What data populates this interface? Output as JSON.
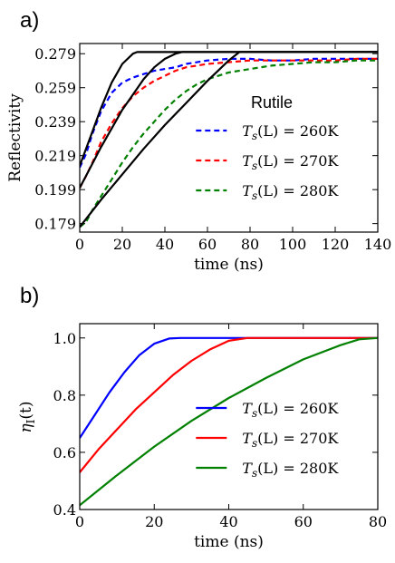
{
  "panels": [
    {
      "letter": "a)"
    },
    {
      "letter": "b)"
    }
  ],
  "chart_data": [
    {
      "type": "line",
      "xlabel": "time (ns)",
      "ylabel": "Reflectivity",
      "xlim": [
        0,
        140
      ],
      "ylim": [
        0.174,
        0.285
      ],
      "xticks": [
        0,
        20,
        40,
        60,
        80,
        100,
        120,
        140
      ],
      "yticks": [
        0.179,
        0.199,
        0.219,
        0.239,
        0.259,
        0.279
      ],
      "yticklabels": [
        "0.179",
        "0.199",
        "0.219",
        "0.239",
        "0.259",
        "0.279"
      ],
      "annotation": "Rutile",
      "legend_position": "lower-right",
      "series": [
        {
          "name": "T_s(L) = 260K",
          "label_main": "T",
          "label_sub": "s",
          "label_rest": "(L) = 260K",
          "color": "#0000ff",
          "style": "dashed",
          "x": [
            0,
            3,
            6,
            10,
            15,
            20,
            25,
            30,
            35,
            40,
            45,
            50,
            60,
            70,
            80,
            90,
            100,
            110,
            120,
            130,
            140
          ],
          "y": [
            0.212,
            0.22,
            0.232,
            0.245,
            0.256,
            0.262,
            0.265,
            0.267,
            0.269,
            0.27,
            0.271,
            0.273,
            0.275,
            0.276,
            0.276,
            0.275,
            0.275,
            0.276,
            0.276,
            0.276,
            0.276
          ]
        },
        {
          "name": "T_s(L) = 270K",
          "label_main": "T",
          "label_sub": "s",
          "label_rest": "(L) = 270K",
          "color": "#ff0000",
          "style": "dashed",
          "x": [
            0,
            3,
            6,
            10,
            15,
            20,
            25,
            30,
            35,
            40,
            45,
            50,
            55,
            60,
            70,
            80,
            90,
            100,
            110,
            120,
            130,
            140
          ],
          "y": [
            0.2,
            0.207,
            0.215,
            0.227,
            0.238,
            0.247,
            0.254,
            0.259,
            0.263,
            0.266,
            0.269,
            0.271,
            0.272,
            0.273,
            0.274,
            0.275,
            0.275,
            0.275,
            0.275,
            0.275,
            0.276,
            0.276
          ]
        },
        {
          "name": "T_s(L) = 280K",
          "label_main": "T",
          "label_sub": "s",
          "label_rest": "(L) = 280K",
          "color": "#008000",
          "style": "dashed",
          "x": [
            0,
            3,
            6,
            10,
            15,
            20,
            25,
            30,
            35,
            40,
            45,
            50,
            55,
            60,
            70,
            80,
            90,
            100,
            110,
            120,
            130,
            140
          ],
          "y": [
            0.177,
            0.18,
            0.187,
            0.195,
            0.205,
            0.215,
            0.224,
            0.232,
            0.239,
            0.246,
            0.252,
            0.257,
            0.261,
            0.264,
            0.268,
            0.27,
            0.272,
            0.273,
            0.274,
            0.274,
            0.275,
            0.275
          ]
        },
        {
          "name": "",
          "color": "#000000",
          "style": "solid",
          "legend": false,
          "x": [
            0,
            5,
            10,
            15,
            20,
            25,
            27,
            30,
            140
          ],
          "y": [
            0.213,
            0.23,
            0.247,
            0.262,
            0.273,
            0.279,
            0.28,
            0.28,
            0.28
          ]
        },
        {
          "name": "",
          "color": "#000000",
          "style": "solid",
          "legend": false,
          "x": [
            0,
            5,
            10,
            15,
            20,
            25,
            30,
            35,
            40,
            45,
            48,
            140
          ],
          "y": [
            0.2,
            0.212,
            0.224,
            0.235,
            0.246,
            0.255,
            0.264,
            0.271,
            0.276,
            0.279,
            0.28,
            0.28
          ]
        },
        {
          "name": "",
          "color": "#000000",
          "style": "solid",
          "legend": false,
          "x": [
            0,
            10,
            20,
            30,
            40,
            50,
            60,
            70,
            75,
            140
          ],
          "y": [
            0.177,
            0.193,
            0.208,
            0.223,
            0.237,
            0.25,
            0.263,
            0.275,
            0.28,
            0.28
          ]
        }
      ]
    },
    {
      "type": "line",
      "xlabel": "time (ns)",
      "ylabel_main": "η",
      "ylabel_sub": "I",
      "ylabel_rest": "(t)",
      "xlim": [
        0,
        80
      ],
      "ylim": [
        0.4,
        1.05
      ],
      "xticks": [
        0,
        20,
        40,
        60,
        80
      ],
      "yticks": [
        0.4,
        0.6,
        0.8,
        1.0
      ],
      "yticklabels": [
        "0.4",
        "0.6",
        "0.8",
        "1.0"
      ],
      "legend_position": "lower-right",
      "series": [
        {
          "name": "T_s(L) = 260K",
          "label_main": "T",
          "label_sub": "s",
          "label_rest": "(L) = 260K",
          "color": "#0000ff",
          "style": "solid",
          "x": [
            0,
            4,
            8,
            12,
            16,
            20,
            24,
            27,
            80
          ],
          "y": [
            0.65,
            0.73,
            0.81,
            0.88,
            0.94,
            0.98,
            0.998,
            1.0,
            1.0
          ]
        },
        {
          "name": "T_s(L) = 270K",
          "label_main": "T",
          "label_sub": "s",
          "label_rest": "(L) = 270K",
          "color": "#ff0000",
          "style": "solid",
          "x": [
            0,
            5,
            10,
            15,
            20,
            25,
            30,
            35,
            40,
            45,
            80
          ],
          "y": [
            0.53,
            0.61,
            0.68,
            0.75,
            0.81,
            0.87,
            0.92,
            0.96,
            0.99,
            1.0,
            1.0
          ]
        },
        {
          "name": "T_s(L) = 280K",
          "label_main": "T",
          "label_sub": "s",
          "label_rest": "(L) = 280K",
          "color": "#008000",
          "style": "solid",
          "x": [
            0,
            10,
            20,
            30,
            40,
            50,
            60,
            70,
            75,
            80
          ],
          "y": [
            0.415,
            0.52,
            0.62,
            0.71,
            0.79,
            0.86,
            0.925,
            0.975,
            0.995,
            1.0
          ]
        }
      ]
    }
  ]
}
